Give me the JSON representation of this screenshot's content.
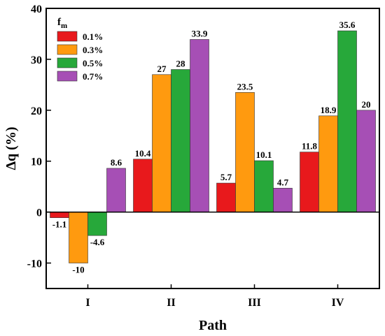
{
  "chart_data": {
    "type": "bar",
    "categories": [
      "I",
      "II",
      "III",
      "IV"
    ],
    "xlabel": "Path",
    "ylabel": "Δq (%)",
    "ylim": [
      -15,
      40
    ],
    "yticks": [
      -10,
      0,
      10,
      20,
      30,
      40
    ],
    "grid": false,
    "legend": {
      "title": "f",
      "title_subscript": "m",
      "placement": "top-left"
    },
    "series": [
      {
        "name": "0.1%",
        "color": "#e8191c",
        "values": [
          -1.1,
          10.4,
          5.7,
          11.8
        ],
        "labels": [
          "-1.1",
          "10.4",
          "5.7",
          "11.8"
        ]
      },
      {
        "name": "0.3%",
        "color": "#ff9a0f",
        "values": [
          -10,
          27,
          23.5,
          18.9
        ],
        "labels": [
          "-10",
          "27",
          "23.5",
          "18.9"
        ]
      },
      {
        "name": "0.5%",
        "color": "#27a83a",
        "values": [
          -4.6,
          28,
          10.1,
          35.6
        ],
        "labels": [
          "-4.6",
          "28",
          "10.1",
          "35.6"
        ]
      },
      {
        "name": "0.7%",
        "color": "#a64fb5",
        "values": [
          8.6,
          33.9,
          4.7,
          20
        ],
        "labels": [
          "8.6",
          "33.9",
          "4.7",
          "20"
        ]
      }
    ]
  }
}
